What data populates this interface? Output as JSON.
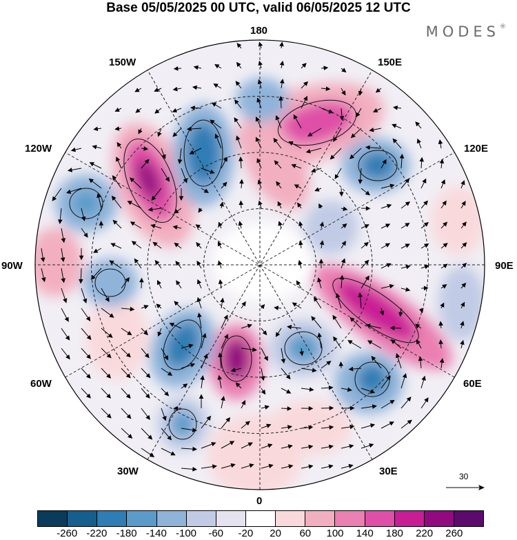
{
  "title": "Base 05/05/2025 00 UTC, valid 06/05/2025 12 UTC",
  "brand": "MODES",
  "brand_mark": "®",
  "longitude_labels": {
    "lon_180": "180",
    "lon_150w": "150W",
    "lon_150e": "150E",
    "lon_120w": "120W",
    "lon_120e": "120E",
    "lon_90w": "90W",
    "lon_90e": "90E",
    "lon_60w": "60W",
    "lon_60e": "60E",
    "lon_30w": "30W",
    "lon_30e": "30E",
    "lon_0": "0"
  },
  "reference_vector": {
    "label": "30"
  },
  "colorbar": {
    "ticks": [
      "-260",
      "-220",
      "-180",
      "-140",
      "-100",
      "-60",
      "-20",
      "20",
      "60",
      "100",
      "140",
      "180",
      "220",
      "260"
    ],
    "colors": [
      "#0b3b5a",
      "#155f8e",
      "#2e7db4",
      "#5a9bc9",
      "#8fb3d9",
      "#c1cbe5",
      "#e5e3f0",
      "#ffffff",
      "#f9d9dc",
      "#f2afc0",
      "#ea7fb1",
      "#df4fa7",
      "#c91d96",
      "#93097f",
      "#5c0a6e"
    ]
  }
}
